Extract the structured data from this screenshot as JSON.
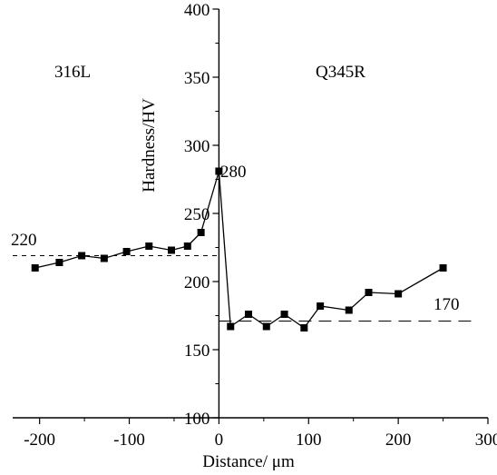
{
  "chart_data": {
    "type": "line",
    "title": "",
    "xlabel": "Distance/ μm",
    "ylabel": "Hardness/HV",
    "xlim": [
      -230,
      300
    ],
    "ylim": [
      100,
      400
    ],
    "xticks": [
      -200,
      -100,
      0,
      100,
      200,
      300
    ],
    "yticks": [
      100,
      150,
      200,
      250,
      300,
      350,
      400
    ],
    "legend": "none",
    "grid": false,
    "colors": {
      "line": "#000000",
      "marker": "#000000",
      "reference": "#000000"
    },
    "series": [
      {
        "x": [
          -205,
          -178,
          -153,
          -128,
          -103,
          -78,
          -53,
          -35,
          -20,
          0,
          13,
          33,
          53,
          73,
          95,
          113,
          145,
          167,
          200,
          250
        ],
        "y": [
          210,
          214,
          219,
          217,
          222,
          226,
          223,
          226,
          236,
          281,
          167,
          176,
          167,
          176,
          166,
          182,
          179,
          192,
          191,
          210
        ]
      }
    ],
    "reference_lines": [
      {
        "label": "220",
        "y": 219,
        "x_range": [
          -230,
          0
        ]
      },
      {
        "label": "170",
        "y": 171,
        "x_range": [
          0,
          285
        ]
      }
    ],
    "annotations": [
      {
        "id": "region-left",
        "text": "316L"
      },
      {
        "id": "region-right",
        "text": "Q345R"
      },
      {
        "id": "peak",
        "text": "280"
      }
    ]
  }
}
